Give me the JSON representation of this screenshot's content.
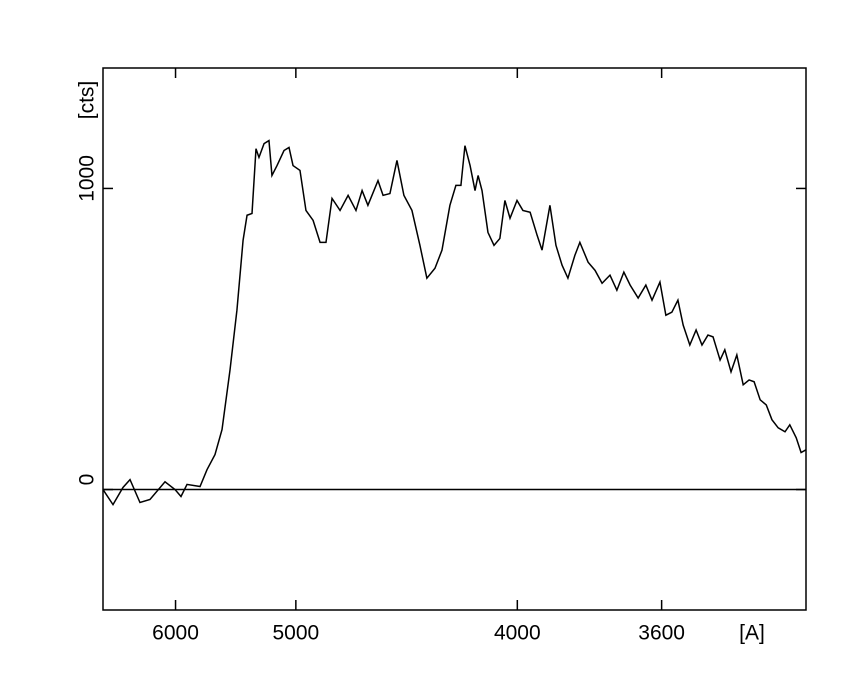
{
  "chart_data": {
    "type": "line",
    "x_label": "[A]",
    "y_label": "[cts]",
    "x": [
      7000,
      6832,
      6676,
      6572,
      6433,
      6302,
      6119,
      6006,
      5941,
      5878,
      5748,
      5682,
      5609,
      5547,
      5479,
      5422,
      5373,
      5342,
      5304,
      5274,
      5252,
      5215,
      5180,
      5159,
      5124,
      5077,
      5044,
      5018,
      4974,
      4937,
      4894,
      4853,
      4819,
      4785,
      4741,
      4698,
      4657,
      4626,
      4597,
      4548,
      4524,
      4492,
      4460,
      4429,
      4394,
      4360,
      4331,
      4298,
      4270,
      4239,
      4216,
      4197,
      4182,
      4163,
      4145,
      4134,
      4120,
      4099,
      4078,
      4058,
      4041,
      4024,
      4001,
      3982,
      3959,
      3937,
      3922,
      3898,
      3880,
      3862,
      3845,
      3825,
      3811,
      3788,
      3769,
      3750,
      3729,
      3711,
      3693,
      3677,
      3657,
      3638,
      3623,
      3604,
      3590,
      3576,
      3562,
      3550,
      3535,
      3521,
      3508,
      3495,
      3484,
      3469,
      3459,
      3446,
      3434,
      3421,
      3409,
      3399,
      3387,
      3375,
      3364,
      3352,
      3339,
      3330,
      3318,
      3309,
      3300
    ],
    "series": [
      {
        "color": "#000000",
        "values": [
          0,
          -50,
          7,
          33,
          -43,
          -33,
          26,
          0,
          -23,
          17,
          10,
          66,
          116,
          199,
          397,
          596,
          828,
          911,
          917,
          1132,
          1103,
          1149,
          1159,
          1043,
          1076,
          1126,
          1136,
          1076,
          1060,
          927,
          894,
          821,
          821,
          967,
          927,
          977,
          927,
          993,
          944,
          1026,
          977,
          983,
          1093,
          977,
          927,
          811,
          702,
          735,
          795,
          944,
          1010,
          1010,
          1142,
          1076,
          993,
          1043,
          993,
          854,
          811,
          834,
          960,
          901,
          960,
          927,
          921,
          844,
          795,
          944,
          811,
          745,
          702,
          778,
          821,
          755,
          728,
          685,
          712,
          662,
          722,
          679,
          636,
          679,
          629,
          689,
          579,
          589,
          629,
          546,
          480,
          530,
          480,
          513,
          507,
          430,
          464,
          391,
          447,
          348,
          364,
          358,
          298,
          281,
          232,
          205,
          192,
          215,
          172,
          123,
          132
        ]
      }
    ],
    "xlim": [
      7000,
      3300
    ],
    "xticks": [
      6000,
      5000,
      4000,
      3600
    ],
    "xscale": "inverse-square",
    "ylim": [
      -400,
      1400
    ],
    "yticks": [
      0,
      1000
    ],
    "zero_line": true
  }
}
